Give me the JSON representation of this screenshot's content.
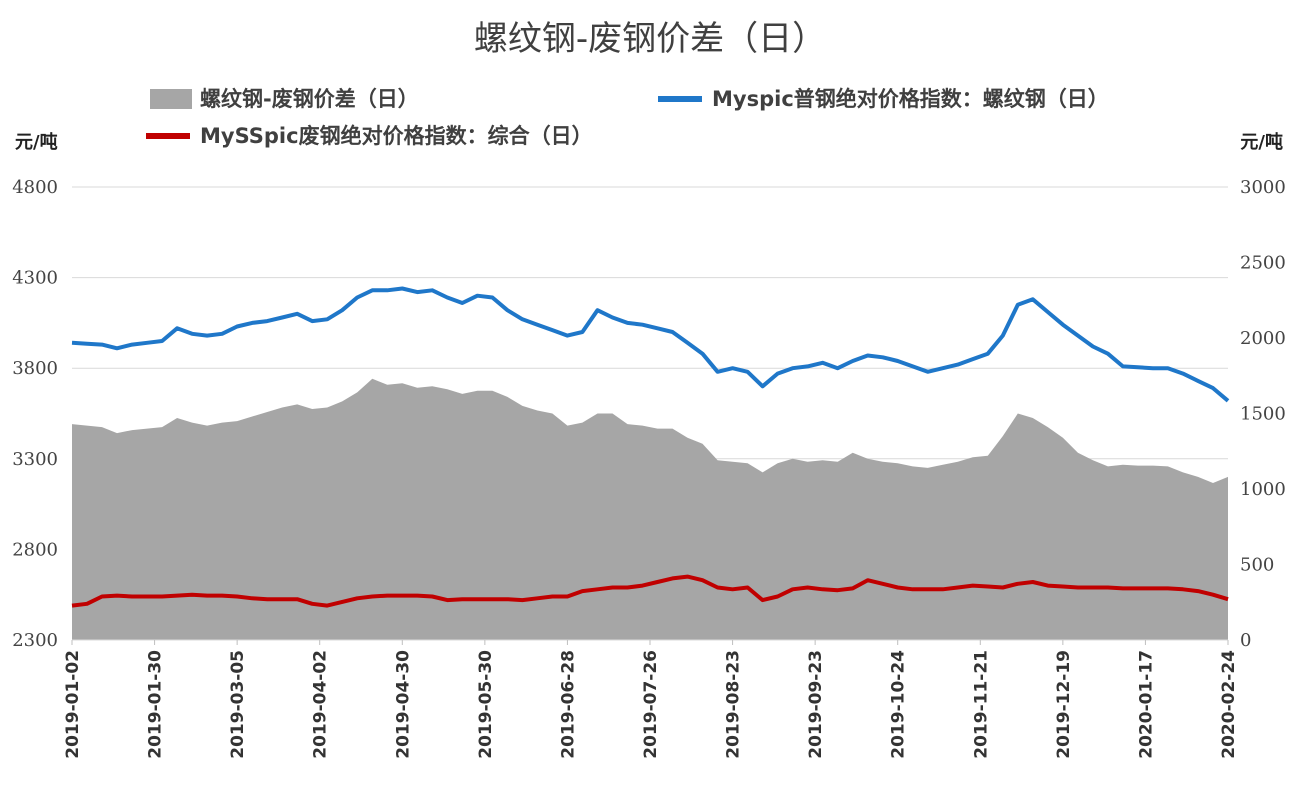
{
  "chart_data": {
    "type": "area+line",
    "title": "螺纹钢-废钢价差（日）",
    "left_axis": {
      "unit": "元/吨",
      "ticks": [
        2300,
        2800,
        3300,
        3800,
        4300,
        4800
      ],
      "range": [
        2300,
        4800
      ]
    },
    "right_axis": {
      "unit": "元/吨",
      "ticks": [
        0,
        500,
        1000,
        1500,
        2000,
        2500,
        3000
      ],
      "range": [
        0,
        3000
      ]
    },
    "x_ticks": [
      "2019-01-02",
      "2019-01-30",
      "2019-03-05",
      "2019-04-02",
      "2019-04-30",
      "2019-05-30",
      "2019-06-28",
      "2019-07-26",
      "2019-08-23",
      "2019-09-23",
      "2019-10-24",
      "2019-11-21",
      "2019-12-19",
      "2020-01-17",
      "2020-02-24"
    ],
    "legend_position": "top",
    "grid": "horizontal",
    "series": [
      {
        "name": "螺纹钢-废钢价差（日）",
        "type": "area",
        "axis": "right",
        "color": "#a6a6a6",
        "values": [
          1430,
          1420,
          1410,
          1370,
          1390,
          1400,
          1410,
          1470,
          1440,
          1420,
          1440,
          1450,
          1480,
          1510,
          1540,
          1560,
          1530,
          1540,
          1580,
          1640,
          1730,
          1690,
          1700,
          1670,
          1680,
          1660,
          1630,
          1650,
          1650,
          1610,
          1550,
          1520,
          1500,
          1420,
          1440,
          1500,
          1500,
          1430,
          1420,
          1400,
          1400,
          1340,
          1300,
          1190,
          1180,
          1170,
          1110,
          1170,
          1200,
          1180,
          1190,
          1180,
          1240,
          1200,
          1180,
          1170,
          1150,
          1140,
          1160,
          1180,
          1210,
          1220,
          1350,
          1500,
          1470,
          1410,
          1340,
          1240,
          1190,
          1150,
          1160,
          1155,
          1155,
          1150,
          1110,
          1080,
          1040,
          1080
        ]
      },
      {
        "name": "Myspic普钢绝对价格指数：螺纹钢（日）",
        "type": "line",
        "axis": "left",
        "color": "#1f77c9",
        "values": [
          3940,
          3935,
          3930,
          3910,
          3930,
          3940,
          3950,
          4020,
          3990,
          3980,
          3990,
          4030,
          4050,
          4060,
          4080,
          4100,
          4060,
          4070,
          4120,
          4190,
          4230,
          4230,
          4240,
          4220,
          4230,
          4190,
          4160,
          4200,
          4190,
          4120,
          4070,
          4040,
          4010,
          3980,
          4000,
          4120,
          4080,
          4050,
          4040,
          4020,
          4000,
          3940,
          3880,
          3780,
          3800,
          3780,
          3700,
          3770,
          3800,
          3810,
          3830,
          3800,
          3840,
          3870,
          3860,
          3840,
          3810,
          3780,
          3800,
          3820,
          3850,
          3880,
          3980,
          4150,
          4180,
          4110,
          4040,
          3980,
          3920,
          3880,
          3810,
          3805,
          3800,
          3800,
          3770,
          3730,
          3690,
          3620
        ]
      },
      {
        "name": "MySSpic废钢绝对价格指数：综合（日）",
        "type": "line",
        "axis": "left",
        "color": "#c00000",
        "values": [
          2490,
          2500,
          2540,
          2545,
          2540,
          2540,
          2540,
          2545,
          2550,
          2545,
          2545,
          2540,
          2530,
          2525,
          2525,
          2525,
          2500,
          2490,
          2510,
          2530,
          2540,
          2545,
          2545,
          2545,
          2540,
          2520,
          2525,
          2525,
          2525,
          2525,
          2520,
          2530,
          2540,
          2540,
          2570,
          2580,
          2590,
          2590,
          2600,
          2620,
          2640,
          2650,
          2630,
          2590,
          2580,
          2590,
          2520,
          2540,
          2580,
          2590,
          2580,
          2575,
          2585,
          2630,
          2610,
          2590,
          2580,
          2580,
          2580,
          2590,
          2600,
          2595,
          2590,
          2610,
          2620,
          2600,
          2595,
          2590,
          2590,
          2590,
          2585,
          2585,
          2585,
          2585,
          2580,
          2570,
          2550,
          2525
        ]
      }
    ]
  }
}
